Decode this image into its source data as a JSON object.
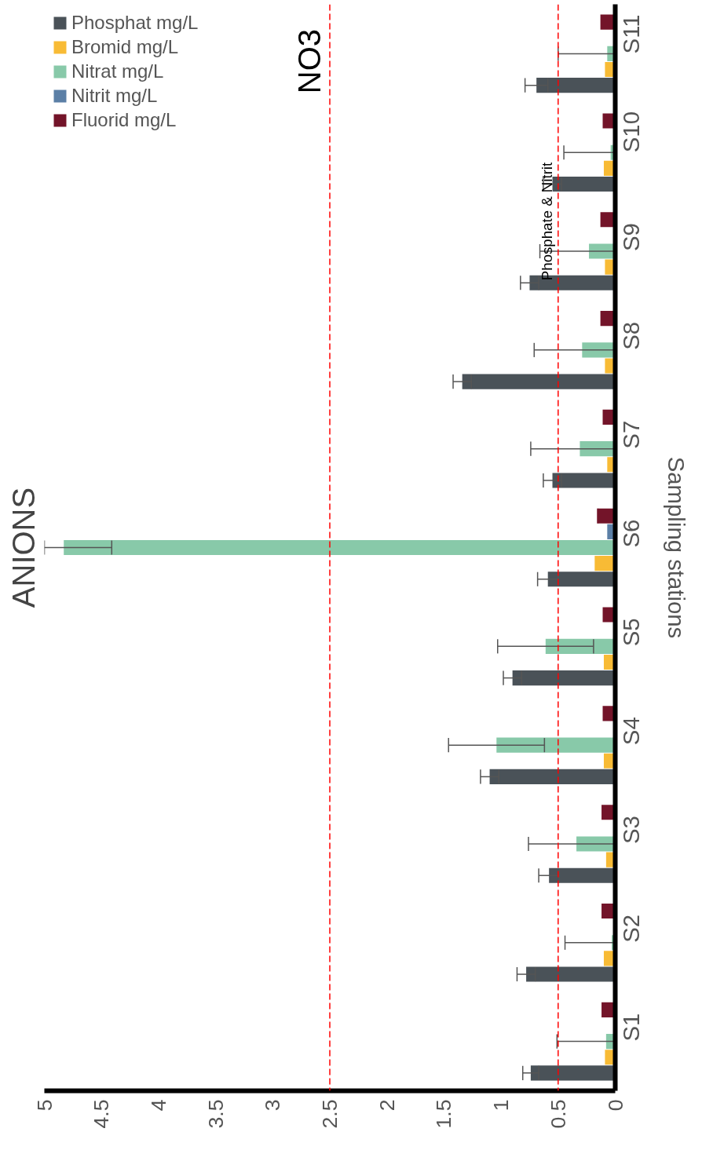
{
  "chart_data": {
    "type": "bar",
    "orientation": "horizontal",
    "title": "ANIONS",
    "ylabel": "Sampling stations",
    "categories": [
      "S11",
      "S10",
      "S9",
      "S8",
      "S7",
      "S6",
      "S5",
      "S4",
      "S3",
      "S2",
      "S1"
    ],
    "series": [
      {
        "name": "Phosphat mg/L",
        "color": "#4a5258",
        "values": [
          0.69,
          0.55,
          0.75,
          1.34,
          0.55,
          0.59,
          0.9,
          1.1,
          0.58,
          0.78,
          0.74
        ],
        "errors": [
          0.1,
          0.08,
          0.08,
          0.08,
          0.08,
          0.09,
          0.08,
          0.08,
          0.09,
          0.08,
          0.07
        ]
      },
      {
        "name": "Bromid mg/L",
        "color": "#f8bb35",
        "values": [
          0.09,
          0.1,
          0.09,
          0.09,
          0.07,
          0.18,
          0.1,
          0.1,
          0.08,
          0.1,
          0.09
        ]
      },
      {
        "name": "Nitrat mg/L",
        "color": "#88c9a9",
        "values": [
          0.07,
          0.04,
          0.23,
          0.29,
          0.31,
          4.83,
          0.61,
          1.04,
          0.34,
          0.03,
          0.08
        ],
        "errors": [
          [
            0,
            0.5
          ],
          [
            0,
            0.45
          ],
          [
            0,
            0.66
          ],
          [
            0,
            0.71
          ],
          [
            0,
            0.74
          ],
          [
            4.41,
            5.0
          ],
          0.42,
          0.42,
          [
            0,
            0.76
          ],
          [
            0,
            0.44
          ],
          [
            0,
            0.51
          ]
        ]
      },
      {
        "name": "Nitrit mg/L",
        "color": "#5b7fa6",
        "values": [
          0,
          0,
          0,
          0,
          0,
          0.07,
          0,
          0,
          0,
          0,
          0
        ]
      },
      {
        "name": "Fluorid mg/L",
        "color": "#731429",
        "values": [
          0.13,
          0.11,
          0.13,
          0.13,
          0.11,
          0.16,
          0.11,
          0.11,
          0.12,
          0.12,
          0.12
        ]
      }
    ],
    "xlim": [
      5,
      0
    ],
    "xticks": [
      0,
      0.5,
      1,
      1.5,
      2,
      2.5,
      3,
      3.5,
      4,
      4.5,
      5
    ],
    "ref_lines": [
      {
        "axis": "x",
        "value": 2.5,
        "label": "NO3",
        "color": "#ff0000",
        "line_style": "dashed"
      },
      {
        "axis": "x",
        "value": 0.5,
        "label": "Phosphate & Nitrit",
        "color": "#ff0000",
        "line_style": "dashed"
      }
    ],
    "legend": "top left",
    "grid": false
  }
}
